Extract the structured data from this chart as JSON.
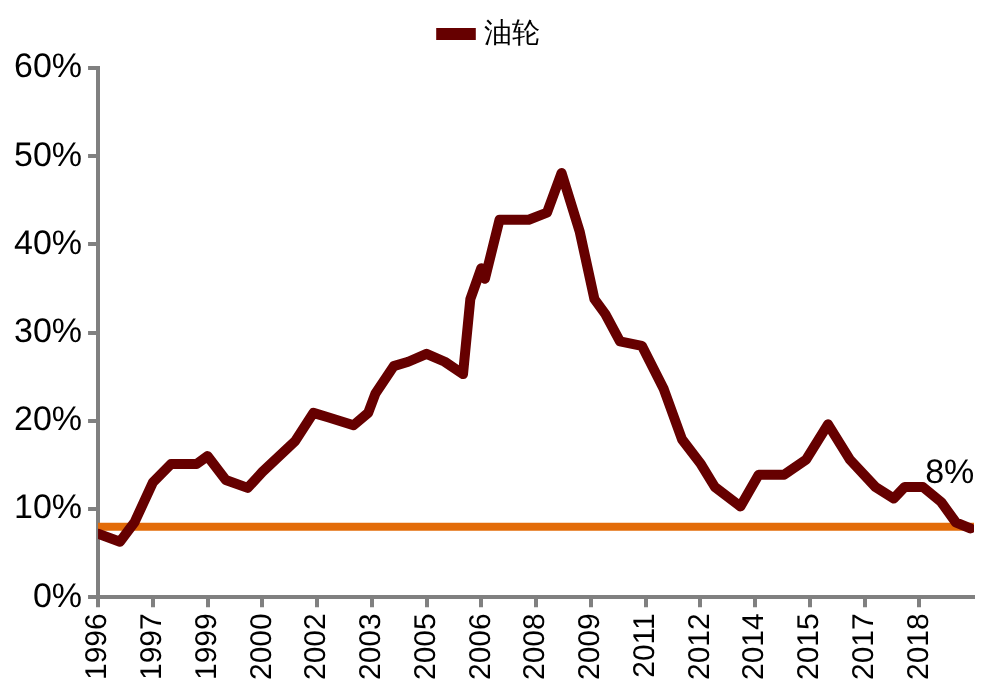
{
  "chart_data": {
    "type": "line",
    "legend": "top",
    "xlim": [
      1996,
      2020
    ],
    "xticks": [
      {
        "value": 1996,
        "label": "1996"
      },
      {
        "value": 1997.5,
        "label": "1997"
      },
      {
        "value": 1999,
        "label": "1999"
      },
      {
        "value": 2000.5,
        "label": "2000"
      },
      {
        "value": 2002,
        "label": "2002"
      },
      {
        "value": 2003.5,
        "label": "2003"
      },
      {
        "value": 2005,
        "label": "2005"
      },
      {
        "value": 2006.5,
        "label": "2006"
      },
      {
        "value": 2008,
        "label": "2008"
      },
      {
        "value": 2009.5,
        "label": "2009"
      },
      {
        "value": 2011,
        "label": "2011"
      },
      {
        "value": 2012.5,
        "label": "2012"
      },
      {
        "value": 2014,
        "label": "2014"
      },
      {
        "value": 2015.5,
        "label": "2015"
      },
      {
        "value": 2017,
        "label": "2017"
      },
      {
        "value": 2018.5,
        "label": "2018"
      }
    ],
    "ylim": [
      0,
      60
    ],
    "yticks": [
      {
        "value": 0,
        "label": "0%"
      },
      {
        "value": 10,
        "label": "10%"
      },
      {
        "value": 20,
        "label": "20%"
      },
      {
        "value": 30,
        "label": "30%"
      },
      {
        "value": 40,
        "label": "40%"
      },
      {
        "value": 50,
        "label": "50%"
      },
      {
        "value": 60,
        "label": "60%"
      }
    ],
    "grid": false,
    "marker": "none",
    "line_style": "solid",
    "x": [
      1996,
      1996.6,
      1997,
      1997.5,
      1998,
      1998.7,
      1999,
      1999.5,
      2000.1,
      2000.5,
      2001.4,
      2001.9,
      2002.3,
      2003,
      2003.4,
      2003.6,
      2004.1,
      2004.5,
      2005,
      2005.5,
      2006,
      2006.2,
      2006.5,
      2006.6,
      2007,
      2007.8,
      2008.3,
      2008.7,
      2009.2,
      2009.6,
      2009.9,
      2010.3,
      2010.9,
      2011.5,
      2012,
      2012.5,
      2012.9,
      2013.6,
      2014.1,
      2014.8,
      2015.4,
      2016,
      2016.6,
      2017.3,
      2017.8,
      2018.1,
      2018.6,
      2019.1,
      2019.5,
      2019.9
    ],
    "series": [
      {
        "name": "油轮",
        "color": "#660000",
        "values": [
          7.2,
          6.3,
          8.5,
          13,
          15.1,
          15.1,
          16,
          13.3,
          12.4,
          14.2,
          17.7,
          20.9,
          20.4,
          19.5,
          20.9,
          23.1,
          26.2,
          26.7,
          27.6,
          26.7,
          25.3,
          33.8,
          37.3,
          36.1,
          42.8,
          42.8,
          43.6,
          48.1,
          41.4,
          33.8,
          32.1,
          29,
          28.5,
          23.6,
          17.9,
          15.2,
          12.5,
          10.3,
          13.9,
          13.9,
          15.6,
          19.6,
          15.6,
          12.5,
          11.2,
          12.5,
          12.5,
          10.8,
          8.5,
          7.8
        ]
      }
    ],
    "ref_lines": [
      {
        "axis": "y",
        "value": 8,
        "color": "#e36c09"
      }
    ],
    "annotations": [
      {
        "text": "8%",
        "x": 2019.9,
        "y": 8
      }
    ]
  }
}
